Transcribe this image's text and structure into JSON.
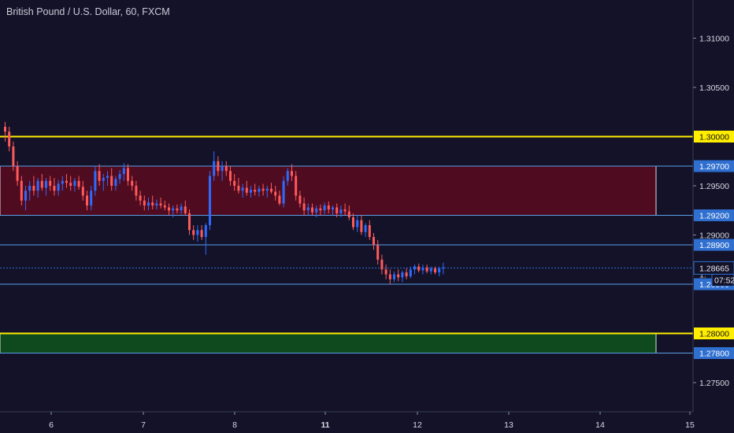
{
  "chart_title": "British Pound / U.S. Dollar, 60, FXCM",
  "chart_data": {
    "type": "candlestick",
    "symbol": "British Pound / U.S. Dollar",
    "interval": "60",
    "source": "FXCM",
    "y_range": [
      1.2715,
      1.317
    ],
    "x_ticks": [
      {
        "label": "6",
        "bold": false
      },
      {
        "label": "7",
        "bold": false
      },
      {
        "label": "8",
        "bold": false
      },
      {
        "label": "11",
        "bold": true
      },
      {
        "label": "12",
        "bold": false
      },
      {
        "label": "13",
        "bold": false
      },
      {
        "label": "14",
        "bold": false
      },
      {
        "label": "15",
        "bold": false
      }
    ],
    "y_ticks": [
      "1.31000",
      "1.30500",
      "1.29500",
      "1.29000",
      "1.27500"
    ],
    "zones": [
      {
        "name": "resistance-zone",
        "from": 1.292,
        "to": 1.297,
        "color": "#4f0b1f",
        "border": "#e6d6e6"
      },
      {
        "name": "support-zone",
        "from": 1.278,
        "to": 1.28,
        "color": "#0f4a1e",
        "border": "#cfe8cf"
      }
    ],
    "horizontal_lines": [
      {
        "value": 1.3,
        "label": "1.30000",
        "color": "#ffee00",
        "tag_bg": "#ffee00",
        "tag_fg": "#111111"
      },
      {
        "value": 1.28,
        "label": "1.28000",
        "color": "#ffee00",
        "tag_bg": "#ffee00",
        "tag_fg": "#111111"
      },
      {
        "value": 1.297,
        "label": "1.29700",
        "color": "#5aa0e6",
        "tag_bg": "#2f6fcf",
        "tag_fg": "#ffffff"
      },
      {
        "value": 1.292,
        "label": "1.29200",
        "color": "#5aa0e6",
        "tag_bg": "#2f6fcf",
        "tag_fg": "#ffffff"
      },
      {
        "value": 1.289,
        "label": "1.28900",
        "color": "#5aa0e6",
        "tag_bg": "#2f6fcf",
        "tag_fg": "#ffffff"
      },
      {
        "value": 1.285,
        "label": "1.28500",
        "color": "#5aa0e6",
        "tag_bg": "#2f6fcf",
        "tag_fg": "#ffffff"
      },
      {
        "value": 1.278,
        "label": "1.27800",
        "color": "#5aa0e6",
        "tag_bg": "#2f6fcf",
        "tag_fg": "#ffffff"
      }
    ],
    "current_price": {
      "value": 1.28665,
      "label": "1.28665",
      "countdown": "07:52",
      "color": "#2f6fcf"
    },
    "partial_tick_label": "1.",
    "bull_color": "#2d6bff",
    "bear_color": "#ff5a5a",
    "candles": [
      [
        1.301,
        1.3015,
        1.2995,
        1.3005
      ],
      [
        1.3005,
        1.301,
        1.2985,
        1.299
      ],
      [
        1.299,
        1.2995,
        1.2965,
        1.297
      ],
      [
        1.297,
        1.2975,
        1.295,
        1.2955
      ],
      [
        1.2955,
        1.296,
        1.293,
        1.2935
      ],
      [
        1.2935,
        1.295,
        1.2925,
        1.2945
      ],
      [
        1.2945,
        1.2955,
        1.2935,
        1.295
      ],
      [
        1.295,
        1.296,
        1.294,
        1.2945
      ],
      [
        1.2945,
        1.2958,
        1.2938,
        1.2955
      ],
      [
        1.2955,
        1.2962,
        1.2945,
        1.2948
      ],
      [
        1.2948,
        1.2958,
        1.294,
        1.2955
      ],
      [
        1.2955,
        1.296,
        1.2945,
        1.295
      ],
      [
        1.295,
        1.2958,
        1.294,
        1.2945
      ],
      [
        1.2945,
        1.2956,
        1.294,
        1.2952
      ],
      [
        1.2952,
        1.296,
        1.2945,
        1.2955
      ],
      [
        1.2955,
        1.2962,
        1.2948,
        1.2953
      ],
      [
        1.2953,
        1.296,
        1.2945,
        1.295
      ],
      [
        1.295,
        1.2958,
        1.2944,
        1.2955
      ],
      [
        1.2955,
        1.296,
        1.2946,
        1.2949
      ],
      [
        1.2949,
        1.2955,
        1.2935,
        1.294
      ],
      [
        1.294,
        1.2945,
        1.2925,
        1.293
      ],
      [
        1.293,
        1.295,
        1.2925,
        1.2945
      ],
      [
        1.2945,
        1.297,
        1.294,
        1.2965
      ],
      [
        1.2965,
        1.2972,
        1.295,
        1.2955
      ],
      [
        1.2955,
        1.2962,
        1.2945,
        1.2958
      ],
      [
        1.2958,
        1.2965,
        1.295,
        1.296
      ],
      [
        1.296,
        1.2968,
        1.2945,
        1.295
      ],
      [
        1.295,
        1.296,
        1.2945,
        1.2957
      ],
      [
        1.2957,
        1.2966,
        1.2952,
        1.2962
      ],
      [
        1.2962,
        1.2973,
        1.2955,
        1.2968
      ],
      [
        1.2968,
        1.2972,
        1.295,
        1.2955
      ],
      [
        1.2955,
        1.296,
        1.2945,
        1.295
      ],
      [
        1.295,
        1.2955,
        1.2935,
        1.294
      ],
      [
        1.294,
        1.2945,
        1.293,
        1.2935
      ],
      [
        1.2935,
        1.294,
        1.2925,
        1.293
      ],
      [
        1.293,
        1.2938,
        1.2925,
        1.2933
      ],
      [
        1.2933,
        1.294,
        1.2926,
        1.293
      ],
      [
        1.293,
        1.2936,
        1.2926,
        1.2932
      ],
      [
        1.2932,
        1.2938,
        1.2927,
        1.293
      ],
      [
        1.293,
        1.2935,
        1.2925,
        1.2928
      ],
      [
        1.2928,
        1.2932,
        1.292,
        1.2925
      ],
      [
        1.2925,
        1.293,
        1.2918,
        1.2927
      ],
      [
        1.2927,
        1.2931,
        1.2922,
        1.2925
      ],
      [
        1.2925,
        1.2932,
        1.2921,
        1.2929
      ],
      [
        1.2929,
        1.2935,
        1.292,
        1.2922
      ],
      [
        1.2922,
        1.2926,
        1.29,
        1.2905
      ],
      [
        1.2905,
        1.291,
        1.2895,
        1.29
      ],
      [
        1.29,
        1.291,
        1.2893,
        1.2905
      ],
      [
        1.2905,
        1.291,
        1.2895,
        1.2898
      ],
      [
        1.2898,
        1.2912,
        1.288,
        1.291
      ],
      [
        1.291,
        1.2965,
        1.2905,
        1.296
      ],
      [
        1.296,
        1.2985,
        1.2955,
        1.2975
      ],
      [
        1.2975,
        1.298,
        1.296,
        1.2965
      ],
      [
        1.2965,
        1.2975,
        1.2955,
        1.297
      ],
      [
        1.297,
        1.2975,
        1.296,
        1.2965
      ],
      [
        1.2965,
        1.297,
        1.295,
        1.2955
      ],
      [
        1.2955,
        1.2962,
        1.2945,
        1.295
      ],
      [
        1.295,
        1.2958,
        1.2942,
        1.2945
      ],
      [
        1.2945,
        1.2952,
        1.2938,
        1.2948
      ],
      [
        1.2948,
        1.2955,
        1.294,
        1.2943
      ],
      [
        1.2943,
        1.295,
        1.2938,
        1.2946
      ],
      [
        1.2946,
        1.2952,
        1.294,
        1.2944
      ],
      [
        1.2944,
        1.295,
        1.2939,
        1.2947
      ],
      [
        1.2947,
        1.2952,
        1.294,
        1.2945
      ],
      [
        1.2945,
        1.295,
        1.2938,
        1.2947
      ],
      [
        1.2947,
        1.2953,
        1.2942,
        1.2944
      ],
      [
        1.2944,
        1.295,
        1.2935,
        1.294
      ],
      [
        1.294,
        1.2945,
        1.293,
        1.2932
      ],
      [
        1.2932,
        1.296,
        1.2928,
        1.2955
      ],
      [
        1.2955,
        1.2968,
        1.295,
        1.2965
      ],
      [
        1.2965,
        1.2972,
        1.2955,
        1.296
      ],
      [
        1.296,
        1.2965,
        1.2935,
        1.294
      ],
      [
        1.294,
        1.2945,
        1.2928,
        1.2932
      ],
      [
        1.2932,
        1.2938,
        1.292,
        1.2925
      ],
      [
        1.2925,
        1.2932,
        1.292,
        1.2928
      ],
      [
        1.2928,
        1.2932,
        1.292,
        1.2923
      ],
      [
        1.2923,
        1.293,
        1.2918,
        1.2927
      ],
      [
        1.2927,
        1.2931,
        1.292,
        1.2925
      ],
      [
        1.2925,
        1.2933,
        1.2921,
        1.293
      ],
      [
        1.293,
        1.2934,
        1.2922,
        1.2926
      ],
      [
        1.2926,
        1.293,
        1.292,
        1.2928
      ],
      [
        1.2928,
        1.2932,
        1.2918,
        1.2922
      ],
      [
        1.2922,
        1.293,
        1.2918,
        1.2926
      ],
      [
        1.2926,
        1.2932,
        1.292,
        1.2924
      ],
      [
        1.2924,
        1.293,
        1.2915,
        1.2918
      ],
      [
        1.2918,
        1.2922,
        1.2905,
        1.2908
      ],
      [
        1.2908,
        1.292,
        1.2903,
        1.2915
      ],
      [
        1.2915,
        1.292,
        1.29,
        1.2903
      ],
      [
        1.2903,
        1.2912,
        1.2898,
        1.291
      ],
      [
        1.291,
        1.2915,
        1.2895,
        1.2898
      ],
      [
        1.2898,
        1.2902,
        1.2885,
        1.289
      ],
      [
        1.289,
        1.2895,
        1.287,
        1.2875
      ],
      [
        1.2875,
        1.288,
        1.286,
        1.2865
      ],
      [
        1.2865,
        1.287,
        1.2855,
        1.286
      ],
      [
        1.286,
        1.2865,
        1.285,
        1.2855
      ],
      [
        1.2855,
        1.2863,
        1.2852,
        1.286
      ],
      [
        1.286,
        1.2865,
        1.2853,
        1.2857
      ],
      [
        1.2857,
        1.2864,
        1.2852,
        1.2862
      ],
      [
        1.2862,
        1.2866,
        1.2855,
        1.2858
      ],
      [
        1.2858,
        1.2868,
        1.2856,
        1.2865
      ],
      [
        1.2865,
        1.287,
        1.286,
        1.2868
      ],
      [
        1.2868,
        1.2871,
        1.2862,
        1.2864
      ],
      [
        1.2864,
        1.287,
        1.286,
        1.2867
      ],
      [
        1.2867,
        1.287,
        1.2861,
        1.2863
      ],
      [
        1.2863,
        1.2868,
        1.286,
        1.2866
      ],
      [
        1.2866,
        1.2868,
        1.286,
        1.2862
      ],
      [
        1.2862,
        1.2868,
        1.2858,
        1.2866
      ],
      [
        1.2866,
        1.2872,
        1.286,
        1.2867
      ]
    ]
  }
}
